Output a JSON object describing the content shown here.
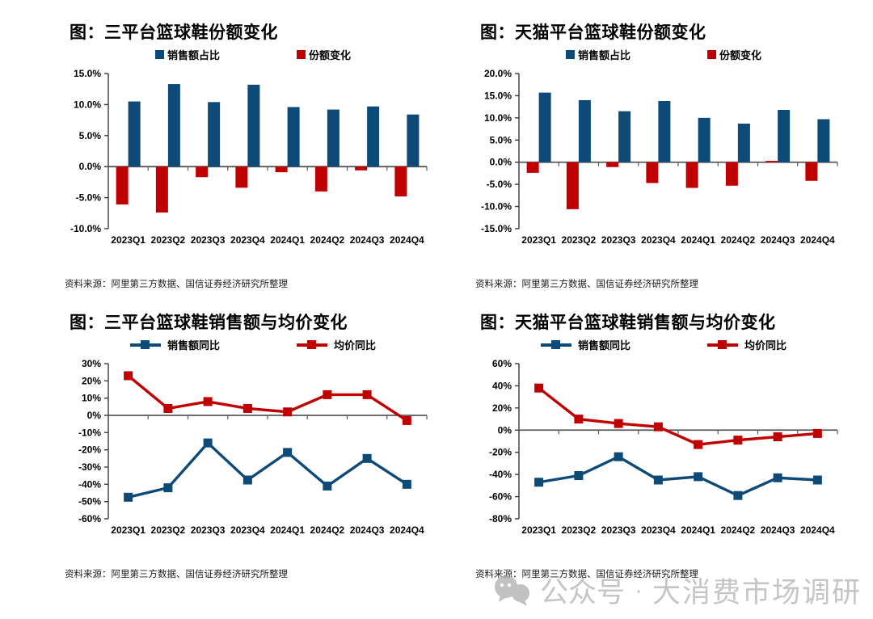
{
  "colors": {
    "blue": "#0e4a78",
    "red": "#c00000",
    "axis": "#3a3a3a",
    "zero_line": "#595959",
    "watermark": "#bfbfbf"
  },
  "watermark": {
    "icon": "chat-bubbles-icon",
    "part1": "公众号",
    "separator": "·",
    "part2": "大消费市场调研"
  },
  "charts": [
    {
      "title": "图：三平台篮球鞋份额变化",
      "source": "资料来源：阿里第三方数据、国信证券经济研究所整理",
      "chart_data": {
        "type": "bar",
        "categories": [
          "2023Q1",
          "2023Q2",
          "2023Q3",
          "2023Q4",
          "2024Q1",
          "2024Q2",
          "2024Q3",
          "2024Q4"
        ],
        "series": [
          {
            "name": "销售额占比",
            "color": "blue",
            "values": [
              10.5,
              13.3,
              10.4,
              13.2,
              9.6,
              9.2,
              9.7,
              8.4
            ]
          },
          {
            "name": "份额变化",
            "color": "red",
            "values": [
              -6.1,
              -7.4,
              -1.7,
              -3.4,
              -0.9,
              -4.0,
              -0.6,
              -4.8
            ]
          }
        ],
        "ylim": [
          -10,
          15
        ],
        "yticks": [
          "15.0%",
          "10.0%",
          "5.0%",
          "0.0%",
          "-5.0%",
          "-10.0%"
        ],
        "grid": false,
        "legend_position": "top"
      }
    },
    {
      "title": "图：天猫平台篮球鞋份额变化",
      "source": "资料来源：阿里第三方数据、国信证券经济研究所整理",
      "chart_data": {
        "type": "bar",
        "categories": [
          "2023Q1",
          "2023Q2",
          "2023Q3",
          "2023Q4",
          "2024Q1",
          "2024Q2",
          "2024Q3",
          "2024Q4"
        ],
        "series": [
          {
            "name": "销售额占比",
            "color": "blue",
            "values": [
              15.7,
              14.0,
              11.5,
              13.8,
              10.0,
              8.7,
              11.8,
              9.7
            ]
          },
          {
            "name": "份额变化",
            "color": "red",
            "values": [
              -2.4,
              -10.6,
              -1.1,
              -4.7,
              -5.8,
              -5.3,
              0.3,
              -4.2
            ]
          }
        ],
        "ylim": [
          -15,
          20
        ],
        "yticks": [
          "20.0%",
          "15.0%",
          "10.0%",
          "5.0%",
          "0.0%",
          "-5.0%",
          "-10.0%",
          "-15.0%"
        ],
        "grid": false,
        "legend_position": "top"
      }
    },
    {
      "title": "图：三平台篮球鞋销售额与均价变化",
      "source": "资料来源：阿里第三方数据、国信证券经济研究所整理",
      "chart_data": {
        "type": "line",
        "categories": [
          "2023Q1",
          "2023Q2",
          "2023Q3",
          "2023Q4",
          "2024Q1",
          "2024Q2",
          "2024Q3",
          "2024Q4"
        ],
        "series": [
          {
            "name": "销售额同比",
            "color": "blue",
            "values": [
              -47.5,
              -42,
              -16,
              -37.5,
              -21.5,
              -41,
              -25,
              -40
            ]
          },
          {
            "name": "均价同比",
            "color": "red",
            "values": [
              23,
              4,
              8,
              4,
              2,
              12,
              12,
              -3
            ]
          }
        ],
        "ylim": [
          -60,
          30
        ],
        "yticks": [
          "30%",
          "20%",
          "10%",
          "0%",
          "-10%",
          "-20%",
          "-30%",
          "-40%",
          "-50%",
          "-60%"
        ],
        "grid": false,
        "legend_position": "top",
        "marker": "square"
      }
    },
    {
      "title": "图：天猫平台篮球鞋销售额与均价变化",
      "source": "资料来源：阿里第三方数据、国信证券经济研究所整理",
      "chart_data": {
        "type": "line",
        "categories": [
          "2023Q1",
          "2023Q2",
          "2023Q3",
          "2023Q4",
          "2024Q1",
          "2024Q2",
          "2024Q3",
          "2024Q4"
        ],
        "series": [
          {
            "name": "销售额同比",
            "color": "blue",
            "values": [
              -47,
              -41,
              -24,
              -45,
              -42,
              -59,
              -43,
              -45
            ]
          },
          {
            "name": "均价同比",
            "color": "red",
            "values": [
              38,
              10,
              6,
              3,
              -13,
              -9,
              -6,
              -3
            ]
          }
        ],
        "ylim": [
          -80,
          60
        ],
        "yticks": [
          "60%",
          "40%",
          "20%",
          "0%",
          "-20%",
          "-40%",
          "-60%",
          "-80%"
        ],
        "grid": false,
        "legend_position": "top",
        "marker": "square"
      }
    }
  ]
}
